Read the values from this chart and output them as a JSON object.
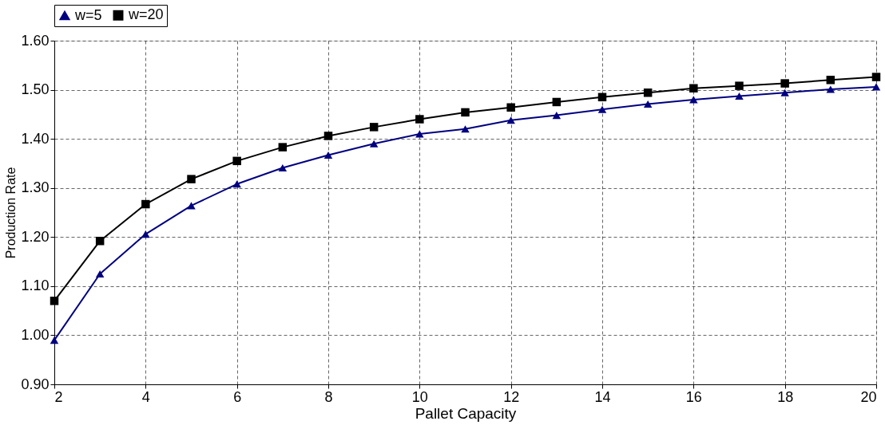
{
  "chart_data": {
    "type": "line",
    "xlabel": "Pallet Capacity",
    "ylabel": "Production Rate",
    "x": [
      2,
      3,
      4,
      5,
      6,
      7,
      8,
      9,
      10,
      11,
      12,
      13,
      14,
      15,
      16,
      17,
      18,
      19,
      20
    ],
    "series": [
      {
        "name": "w=5",
        "color": "#000080",
        "marker": "triangle",
        "values": [
          0.99,
          1.125,
          1.206,
          1.264,
          1.308,
          1.341,
          1.367,
          1.39,
          1.41,
          1.42,
          1.438,
          1.448,
          1.46,
          1.471,
          1.48,
          1.487,
          1.494,
          1.501,
          1.506
        ]
      },
      {
        "name": "w=20",
        "color": "#000000",
        "marker": "square",
        "values": [
          1.07,
          1.192,
          1.267,
          1.318,
          1.355,
          1.383,
          1.406,
          1.424,
          1.44,
          1.454,
          1.464,
          1.475,
          1.485,
          1.494,
          1.503,
          1.508,
          1.513,
          1.52,
          1.526
        ]
      }
    ],
    "xlim": [
      2,
      20
    ],
    "xticks": [
      2,
      4,
      6,
      8,
      10,
      12,
      14,
      16,
      18,
      20
    ],
    "ylim": [
      0.9,
      1.6
    ],
    "yticks": [
      {
        "value": 0.9,
        "label": "0.90"
      },
      {
        "value": 1.0,
        "label": "1.00"
      },
      {
        "value": 1.1,
        "label": "1.10"
      },
      {
        "value": 1.2,
        "label": "1.20"
      },
      {
        "value": 1.3,
        "label": "1.30"
      },
      {
        "value": 1.4,
        "label": "1.40"
      },
      {
        "value": 1.5,
        "label": "1.50"
      },
      {
        "value": 1.6,
        "label": "1.60"
      }
    ],
    "grid": true,
    "legend": "top",
    "line_style": "solid"
  }
}
